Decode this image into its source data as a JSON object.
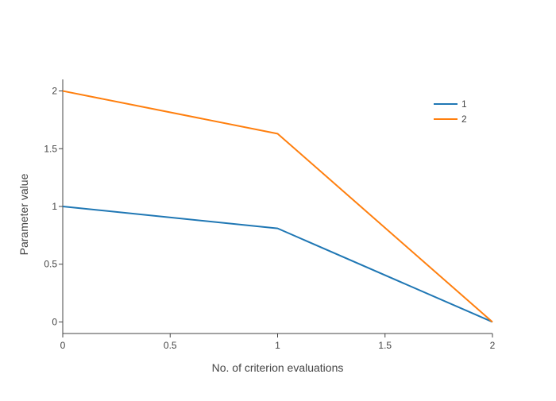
{
  "chart_data": {
    "type": "line",
    "title": "",
    "xlabel": "No. of criterion evaluations",
    "ylabel": "Parameter value",
    "x": [
      0,
      1,
      2
    ],
    "xlim": [
      0,
      2
    ],
    "ylim": [
      -0.1,
      2.1
    ],
    "x_ticks": [
      0,
      0.5,
      1,
      1.5,
      2
    ],
    "x_tick_labels": [
      "0",
      "0.5",
      "1",
      "1.5",
      "2"
    ],
    "y_ticks": [
      0,
      0.5,
      1,
      1.5,
      2
    ],
    "y_tick_labels": [
      "0",
      "0.5",
      "1",
      "1.5",
      "2"
    ],
    "grid": false,
    "legend_position": "top-right",
    "series": [
      {
        "name": "1",
        "color": "#1f77b4",
        "values": [
          1,
          0.81,
          0
        ]
      },
      {
        "name": "2",
        "color": "#ff7f0e",
        "values": [
          2,
          1.63,
          0
        ]
      }
    ]
  }
}
